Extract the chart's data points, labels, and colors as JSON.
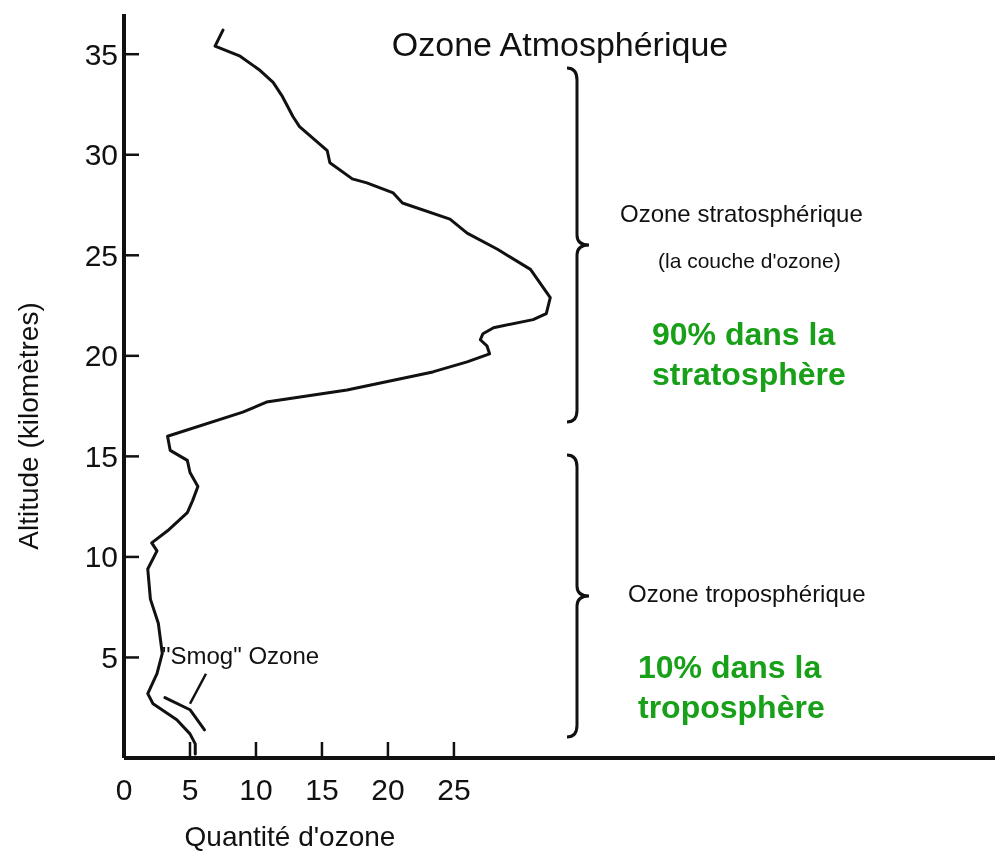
{
  "chart_data": {
    "type": "line",
    "title": "Ozone Atmosphérique",
    "xlabel": "Quantité d'ozone",
    "ylabel": "Altitude (kilomètres)",
    "xlim": [
      0,
      66
    ],
    "ylim": [
      0,
      37
    ],
    "xticks": [
      0,
      5,
      10,
      15,
      20,
      25
    ],
    "yticks": [
      5,
      10,
      15,
      20,
      25,
      30,
      35
    ],
    "grid": false,
    "marker": "none",
    "line_style": "solid",
    "series": [
      {
        "color": "#111111",
        "x": [
          7.5,
          6.9,
          8.8,
          10.3,
          11.3,
          12.0,
          12.8,
          13.3,
          15.4,
          15.6,
          17.3,
          18.4,
          20.4,
          21.1,
          24.7,
          26.0,
          28.3,
          30.8,
          32.3,
          32.0,
          31.0,
          28.0,
          27.2,
          27.0,
          27.5,
          27.7,
          26.0,
          23.4,
          16.9,
          10.8,
          9.0,
          3.3,
          3.5,
          4.8,
          5.0,
          5.6,
          5.2,
          4.8,
          3.3,
          2.1,
          2.5,
          1.8,
          2.0,
          2.6,
          2.9,
          2.5,
          1.8,
          2.2,
          4.0,
          5.0,
          5.4,
          5.4
        ],
        "values": [
          36.2,
          35.4,
          34.9,
          34.2,
          33.6,
          32.9,
          31.9,
          31.4,
          30.2,
          29.6,
          28.8,
          28.6,
          28.1,
          27.6,
          26.8,
          26.1,
          25.3,
          24.3,
          22.9,
          22.1,
          21.8,
          21.4,
          21.1,
          20.8,
          20.5,
          20.1,
          19.7,
          19.2,
          18.3,
          17.7,
          17.2,
          16.0,
          15.3,
          14.8,
          14.2,
          13.5,
          12.8,
          12.2,
          11.3,
          10.7,
          10.3,
          9.4,
          7.9,
          6.7,
          5.2,
          4.2,
          3.2,
          2.7,
          1.9,
          1.2,
          0.7,
          0.2
        ]
      },
      {
        "color": "#111111",
        "x": [
          3.1,
          5.0,
          6.1
        ],
        "values": [
          3.0,
          2.4,
          1.4
        ]
      }
    ],
    "annotations": [
      {
        "text": "\"Smog\" Ozone",
        "x": 5.0,
        "y": 2.4
      },
      "Ozone stratosphérique",
      "(la couche d'ozone)",
      "90% dans la stratosphère",
      "Ozone troposphérique",
      "10% dans la troposphère"
    ]
  }
}
